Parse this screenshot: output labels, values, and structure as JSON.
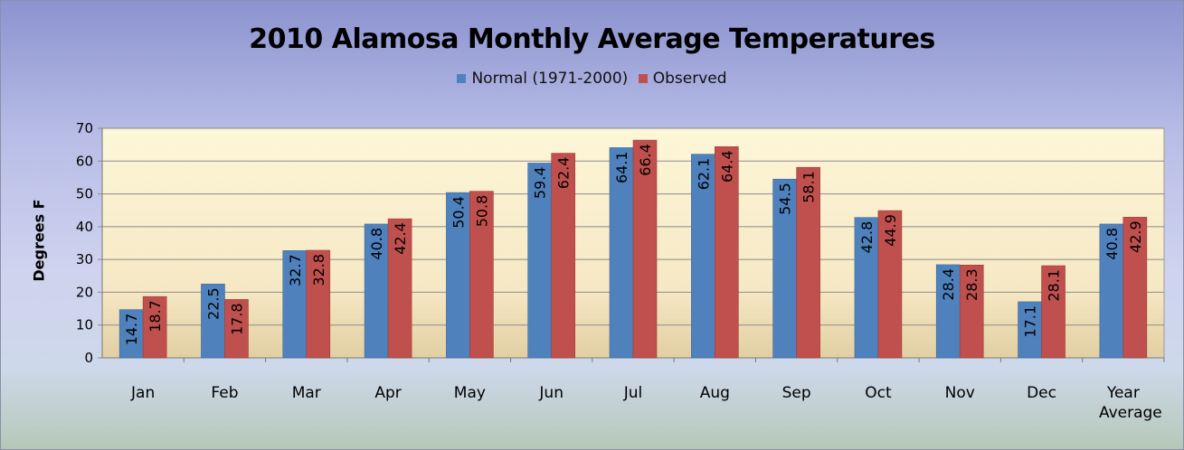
{
  "chart_data": {
    "type": "bar",
    "title": "2010 Alamosa Monthly Average Temperatures",
    "xlabel": "",
    "ylabel": "Degrees F",
    "ylim": [
      0,
      70
    ],
    "yticks": [
      0,
      10,
      20,
      30,
      40,
      50,
      60,
      70
    ],
    "grid": true,
    "legend_position": "top",
    "categories": [
      "Jan",
      "Feb",
      "Mar",
      "Apr",
      "May",
      "Jun",
      "Jul",
      "Aug",
      "Sep",
      "Oct",
      "Nov",
      "Dec",
      "Year Average"
    ],
    "series": [
      {
        "name": "Normal (1971-2000)",
        "color": "#4f81bd",
        "values": [
          14.7,
          22.5,
          32.7,
          40.8,
          50.4,
          59.4,
          64.1,
          62.1,
          54.5,
          42.8,
          28.4,
          17.1,
          40.8
        ]
      },
      {
        "name": "Observed",
        "color": "#c0504d",
        "values": [
          18.7,
          17.8,
          32.8,
          42.4,
          50.8,
          62.4,
          66.4,
          64.4,
          58.1,
          44.9,
          28.3,
          28.1,
          42.9
        ]
      }
    ]
  }
}
